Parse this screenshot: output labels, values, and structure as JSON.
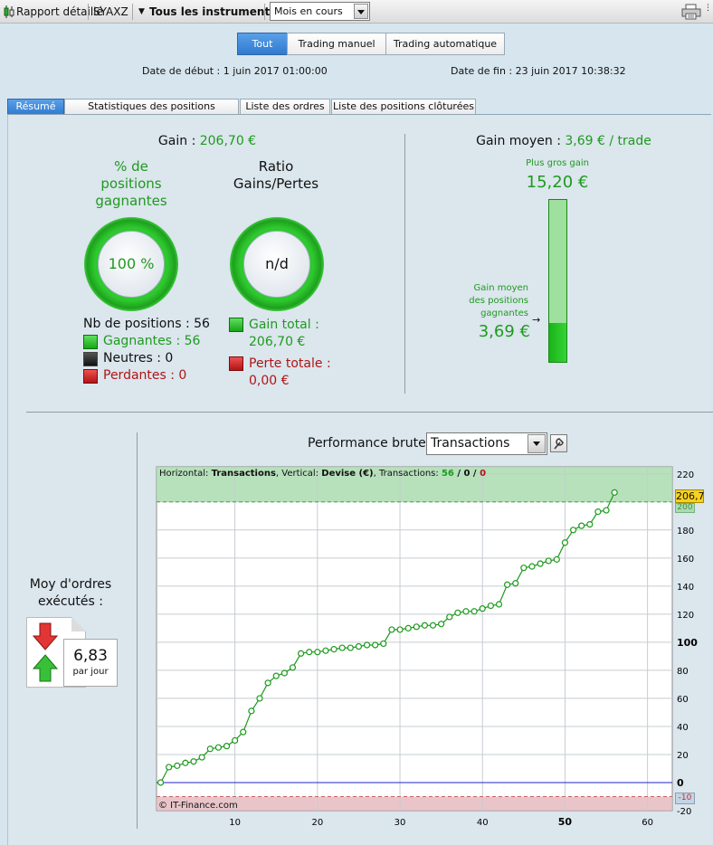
{
  "toolbar": {
    "report_label": "Rapport détaillé",
    "symbol": "SYAXZ",
    "instruments_label": "Tous les instruments",
    "period_value": "Mois en cours"
  },
  "modes": [
    "Tout",
    "Trading manuel",
    "Trading automatique"
  ],
  "dates": {
    "start": "Date de début :  1 juin 2017 01:00:00",
    "end": "Date de fin :  23 juin 2017 10:38:32"
  },
  "tabs": [
    "Résumé",
    "Statistiques des positions clôturées",
    "Liste des ordres",
    "Liste des positions clôturées"
  ],
  "summary": {
    "gain_label": "Gain :",
    "gain_value": "206,70 €",
    "pct_title_1": "% de",
    "pct_title_2": "positions",
    "pct_title_3": "gagnantes",
    "pct_value": "100 %",
    "ratio_title_1": "Ratio",
    "ratio_title_2": "Gains/Pertes",
    "ratio_value": "n/d",
    "positions_count": "Nb de positions : 56",
    "winners": "Gagnantes : 56",
    "neutral": "Neutres : 0",
    "losers": "Perdantes : 0",
    "total_gain_label": "Gain total :",
    "total_gain_value": "206,70 €",
    "total_loss_label": "Perte totale :",
    "total_loss_value": "0,00 €"
  },
  "avg_gain": {
    "label": "Gain moyen :",
    "value": "3,69 € / trade",
    "biggest_label": "Plus gros gain",
    "biggest_value": "15,20 €",
    "avg_win_label_1": "Gain moyen",
    "avg_win_label_2": "des positions",
    "avg_win_label_3": "gagnantes",
    "avg_win_value": "3,69 €",
    "fill_fraction": 0.243
  },
  "orders": {
    "title_1": "Moy d'ordres",
    "title_2": "exécutés :",
    "value": "6,83",
    "unit": "par jour"
  },
  "performance": {
    "title": "Performance brute",
    "select_value": "Transactions",
    "info_prefix": "Horizontal: ",
    "info_h": "Transactions",
    "info_mid": ", Vertical: ",
    "info_v": "Devise (€)",
    "info_tx": ", Transactions: ",
    "info_win": "56",
    "info_sep1": " / ",
    "info_neutral": "0",
    "info_sep2": " / ",
    "info_loss": "0",
    "copyright": "© IT-Finance.com",
    "last_value_tag": "206,7",
    "upper_tag": "200",
    "lower_tag": "-10"
  },
  "chart_data": {
    "type": "line",
    "x_ticks": [
      10,
      20,
      30,
      40,
      50,
      60
    ],
    "y_ticks": [
      -20,
      0,
      20,
      40,
      60,
      80,
      100,
      120,
      140,
      160,
      180,
      200,
      220
    ],
    "xlim": [
      0.5,
      63
    ],
    "ylim": [
      -20,
      225
    ],
    "upper_zone": 200,
    "lower_zone": -10,
    "series": [
      {
        "x": [
          1,
          2,
          3,
          4,
          5,
          6,
          7,
          8,
          9,
          10,
          11,
          12,
          13,
          14,
          15,
          16,
          17,
          18,
          19,
          20,
          21,
          22,
          23,
          24,
          25,
          26,
          27,
          28,
          29,
          30,
          31,
          32,
          33,
          34,
          35,
          36,
          37,
          38,
          39,
          40,
          41,
          42,
          43,
          44,
          45,
          46,
          47,
          48,
          49,
          50,
          51,
          52,
          53,
          54,
          55,
          56
        ],
        "y": [
          0,
          11,
          12,
          14,
          15,
          18,
          24,
          25,
          26,
          30,
          36,
          51,
          60,
          71,
          76,
          78,
          82,
          92,
          93,
          93,
          94,
          95,
          96,
          96,
          97,
          98,
          98,
          99,
          109,
          109,
          110,
          111,
          112,
          112,
          113,
          118,
          121,
          122,
          122,
          124,
          126,
          127,
          141,
          142,
          153,
          154,
          156,
          158,
          159,
          171,
          180,
          183,
          184,
          193,
          194,
          206.7
        ]
      }
    ]
  }
}
